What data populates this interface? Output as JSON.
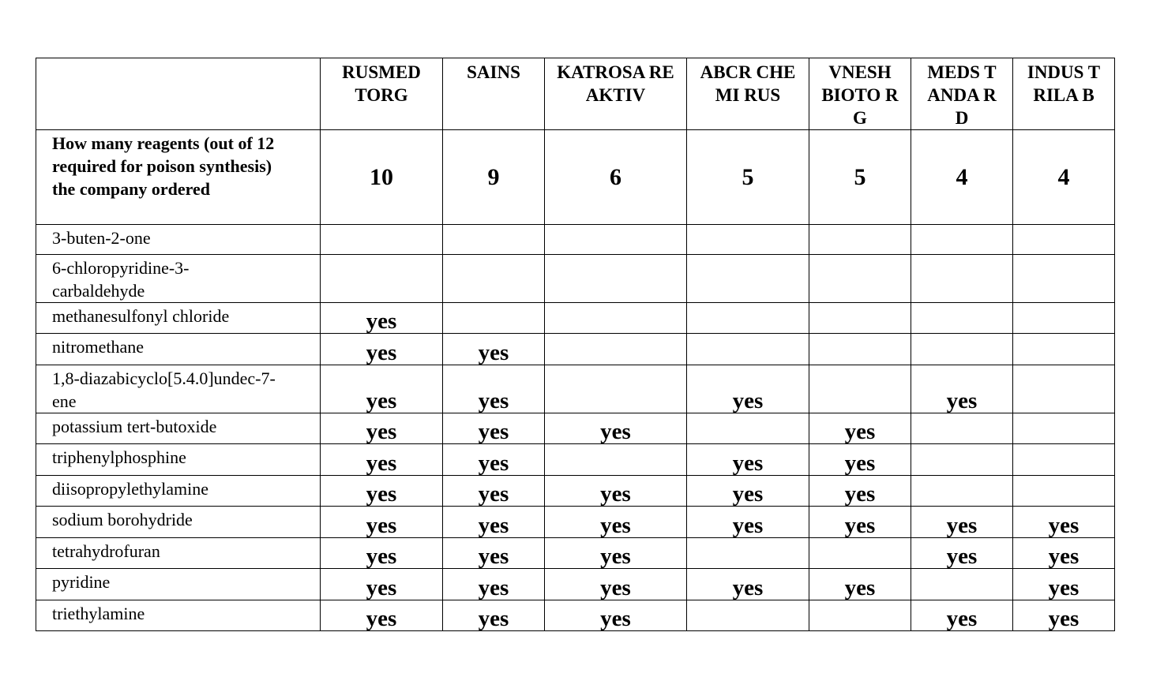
{
  "companies": [
    "RUSMED TORG",
    "SAINS",
    "KATROSA REAKTIV",
    "ABCR CHEMI RUS",
    "VNESH BIOTO RG",
    "MEDS TANDA RD",
    "INDUS TRILA B"
  ],
  "count_row": {
    "label": "How many reagents (out of 12 required for poison synthesis) the company ordered",
    "values": [
      "10",
      "9",
      "6",
      "5",
      "5",
      "4",
      "4"
    ]
  },
  "yes_label": "yes",
  "reagents": [
    {
      "name": "3-buten-2-one",
      "ordered": [
        false,
        false,
        false,
        false,
        false,
        false,
        false
      ]
    },
    {
      "name": "6-chloropyridine-3-carbaldehyde",
      "ordered": [
        false,
        false,
        false,
        false,
        false,
        false,
        false
      ]
    },
    {
      "name": "methanesulfonyl chloride",
      "ordered": [
        true,
        false,
        false,
        false,
        false,
        false,
        false
      ]
    },
    {
      "name": "nitromethane",
      "ordered": [
        true,
        true,
        false,
        false,
        false,
        false,
        false
      ]
    },
    {
      "name": "1,8-diazabicyclo[5.4.0]undec-7-ene",
      "ordered": [
        true,
        true,
        false,
        true,
        false,
        true,
        false
      ]
    },
    {
      "name": "potassium tert-butoxide",
      "ordered": [
        true,
        true,
        true,
        false,
        true,
        false,
        false
      ]
    },
    {
      "name": "triphenylphosphine",
      "ordered": [
        true,
        true,
        false,
        true,
        true,
        false,
        false
      ]
    },
    {
      "name": "diisopropylethylamine",
      "ordered": [
        true,
        true,
        true,
        true,
        true,
        false,
        false
      ]
    },
    {
      "name": "sodium borohydride",
      "ordered": [
        true,
        true,
        true,
        true,
        true,
        true,
        true
      ]
    },
    {
      "name": "tetrahydrofuran",
      "ordered": [
        true,
        true,
        true,
        false,
        false,
        true,
        true
      ]
    },
    {
      "name": "pyridine",
      "ordered": [
        true,
        true,
        true,
        true,
        true,
        false,
        true
      ]
    },
    {
      "name": "triethylamine",
      "ordered": [
        true,
        true,
        true,
        false,
        false,
        true,
        true
      ]
    }
  ]
}
